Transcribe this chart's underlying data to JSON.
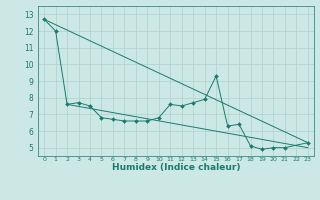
{
  "x": [
    0,
    1,
    2,
    3,
    4,
    5,
    6,
    7,
    8,
    9,
    10,
    11,
    12,
    13,
    14,
    15,
    16,
    17,
    18,
    19,
    20,
    21,
    22,
    23
  ],
  "line1": [
    12.7,
    12.0,
    7.6,
    7.7,
    7.5,
    6.8,
    6.7,
    6.6,
    6.6,
    6.6,
    6.8,
    7.6,
    7.5,
    7.7,
    7.9,
    9.3,
    6.3,
    6.4,
    5.1,
    4.9,
    5.0,
    5.0,
    null,
    5.3
  ],
  "trend1_x": [
    0,
    23
  ],
  "trend1_y": [
    12.7,
    5.3
  ],
  "trend2_x": [
    2,
    23
  ],
  "trend2_y": [
    7.6,
    5.0
  ],
  "line_color": "#1a7a6e",
  "bg_color": "#cce8e4",
  "grid_color": "#b0d0cc",
  "xlabel": "Humidex (Indice chaleur)",
  "xlim": [
    -0.5,
    23.5
  ],
  "ylim": [
    4.5,
    13.5
  ],
  "yticks": [
    5,
    6,
    7,
    8,
    9,
    10,
    11,
    12,
    13
  ],
  "xtick_labels": [
    "0",
    "1",
    "2",
    "3",
    "4",
    "5",
    "6",
    "7",
    "8",
    "9",
    "10",
    "11",
    "12",
    "13",
    "14",
    "15",
    "16",
    "17",
    "18",
    "19",
    "20",
    "21",
    "22",
    "23"
  ]
}
